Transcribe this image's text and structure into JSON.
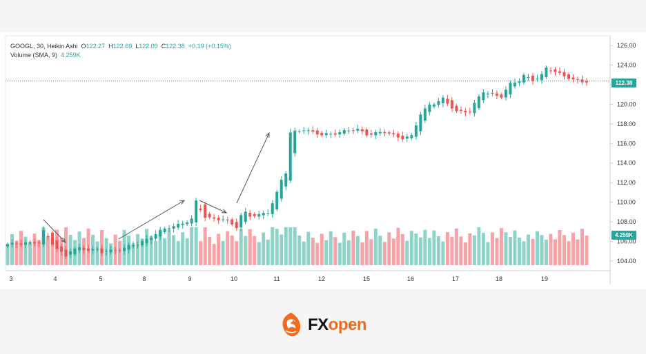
{
  "header": {
    "symbol": "GOOGL",
    "interval": "30",
    "chart_style": "Heikin Ashi",
    "open_label": "O",
    "open": "122.27",
    "high_label": "H",
    "high": "122.69",
    "low_label": "L",
    "low": "122.09",
    "close_label": "C",
    "close": "122.38",
    "change": "+0.19 (+0.15%)",
    "volume_label": "Volume (SMA, 9)",
    "volume_value": "4.259K"
  },
  "price_tag": "122.38",
  "volume_tag": "4.259K",
  "colors": {
    "up": "#26a69a",
    "down": "#ef5350",
    "vol_up": "#8fd3c8",
    "vol_down": "#f5a3a6",
    "accent": "#26a69a",
    "logo_orange": "#ef6c1f"
  },
  "logo": {
    "part1": "FX",
    "part2": "open"
  },
  "chart_data": {
    "type": "candlestick",
    "title": "GOOGL, 30, Heikin Ashi",
    "x_tick_labels": [
      "3",
      "4",
      "5",
      "8",
      "9",
      "10",
      "11",
      "12",
      "15",
      "16",
      "17",
      "18",
      "19"
    ],
    "y_tick_labels": [
      "104.00",
      "106.00",
      "108.00",
      "110.00",
      "112.00",
      "114.00",
      "116.00",
      "118.00",
      "120.00",
      "122.00",
      "124.00",
      "126.00"
    ],
    "ylim": [
      103,
      127
    ],
    "current_price": 122.38,
    "close_path": [
      [
        0,
        105.6
      ],
      [
        4,
        105.9
      ],
      [
        7,
        105.8
      ],
      [
        8,
        107.0
      ],
      [
        11,
        105.3
      ],
      [
        13,
        104.4
      ],
      [
        14,
        105.0
      ],
      [
        16,
        105.3
      ],
      [
        20,
        105.1
      ],
      [
        21,
        104.8
      ],
      [
        22,
        105.0
      ],
      [
        24,
        105.1
      ],
      [
        29,
        105.7
      ],
      [
        33,
        106.8
      ],
      [
        36,
        107.4
      ],
      [
        39,
        107.9
      ],
      [
        41,
        108.2
      ],
      [
        42,
        110.0
      ],
      [
        44,
        108.5
      ],
      [
        48,
        108.2
      ],
      [
        50,
        107.7
      ],
      [
        51,
        107.5
      ],
      [
        52,
        108.7
      ],
      [
        53,
        109.0
      ],
      [
        54,
        108.6
      ],
      [
        56,
        108.6
      ],
      [
        58,
        109.0
      ],
      [
        60,
        111.0
      ],
      [
        61,
        112.3
      ],
      [
        62,
        113.0
      ],
      [
        63,
        117.0
      ],
      [
        66,
        117.5
      ],
      [
        70,
        116.8
      ],
      [
        74,
        117.2
      ],
      [
        78,
        117.4
      ],
      [
        80,
        117.0
      ],
      [
        84,
        117.1
      ],
      [
        88,
        116.6
      ],
      [
        90,
        116.7
      ],
      [
        92,
        119.0
      ],
      [
        94,
        120.0
      ],
      [
        97,
        120.5
      ],
      [
        98,
        120.0
      ],
      [
        100,
        119.3
      ],
      [
        103,
        119.3
      ],
      [
        104,
        120.0
      ],
      [
        106,
        121.3
      ],
      [
        110,
        120.8
      ],
      [
        112,
        122.0
      ],
      [
        114,
        122.5
      ],
      [
        115,
        123.0
      ],
      [
        117,
        122.5
      ],
      [
        118,
        122.6
      ],
      [
        119,
        122.9
      ],
      [
        120,
        123.7
      ],
      [
        122,
        123.4
      ],
      [
        124,
        122.9
      ],
      [
        126,
        122.4
      ],
      [
        129,
        122.38
      ]
    ],
    "volume_sma_value": "4.259K"
  }
}
